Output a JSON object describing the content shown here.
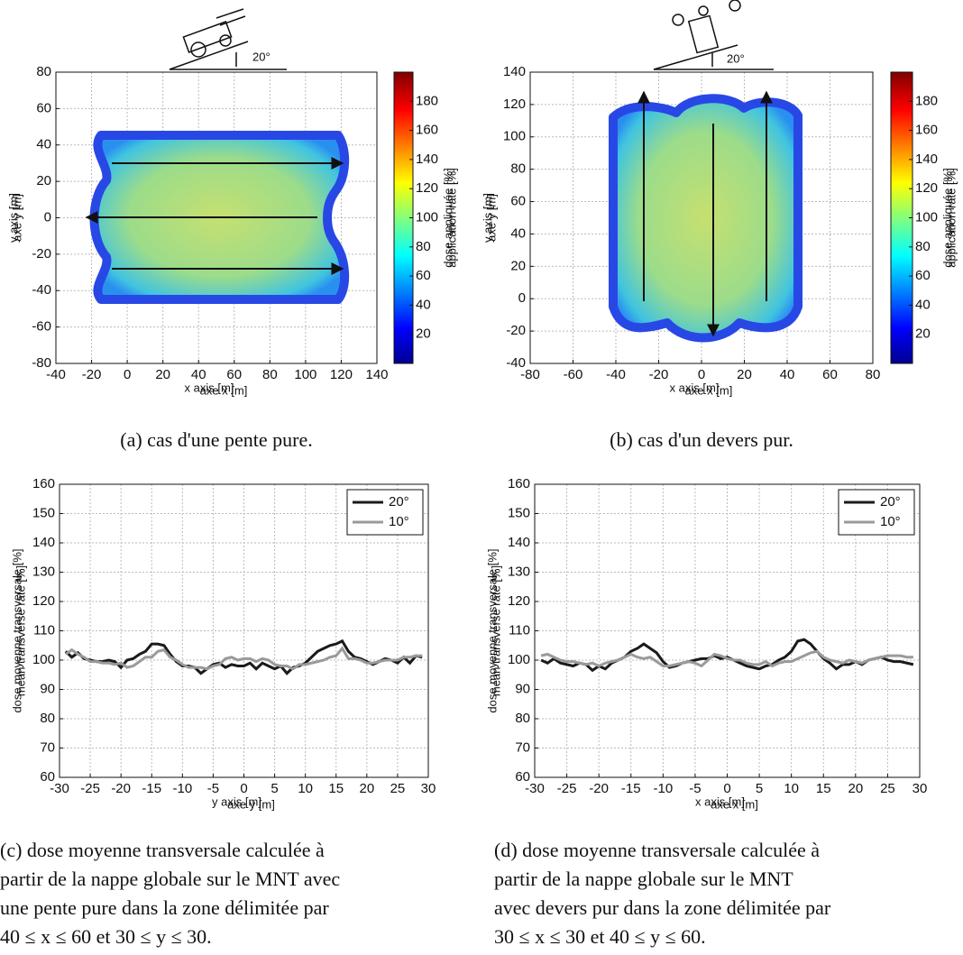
{
  "chart_data": [
    {
      "type": "heatmap",
      "annotation": "20°",
      "xlabel": "x axis [m]",
      "xlabel_alt": "axe x [m]",
      "ylabel": "y axis [m]",
      "ylabel_alt": "axe y [m]",
      "xlim": [
        -40,
        140
      ],
      "xticks": [
        -40,
        -20,
        0,
        20,
        40,
        60,
        80,
        100,
        120,
        140
      ],
      "ylim": [
        -80,
        80
      ],
      "yticks": [
        -80,
        -60,
        -40,
        -20,
        0,
        20,
        40,
        60,
        80
      ],
      "grid": true,
      "colorbar": {
        "clim": [
          0,
          200
        ],
        "ticks": [
          20,
          40,
          60,
          80,
          100,
          120,
          140,
          160,
          180
        ],
        "label": "dose appliquée [%]",
        "label_alt": "application rate [%]"
      },
      "caption": [
        "(a) cas d'une pente pure."
      ]
    },
    {
      "type": "heatmap",
      "annotation": "20°",
      "xlabel": "x axis [m]",
      "xlabel_alt": "axe x [m]",
      "ylabel": "y axis [m]",
      "ylabel_alt": "axe y [m]",
      "xlim": [
        -80,
        80
      ],
      "xticks": [
        -80,
        -60,
        -40,
        -20,
        0,
        20,
        40,
        60,
        80
      ],
      "ylim": [
        -40,
        140
      ],
      "yticks": [
        -40,
        -20,
        0,
        20,
        40,
        60,
        80,
        100,
        120,
        140
      ],
      "grid": true,
      "colorbar": {
        "clim": [
          0,
          200
        ],
        "ticks": [
          20,
          40,
          60,
          80,
          100,
          120,
          140,
          160,
          180
        ],
        "label": "dose appliquée [%]",
        "label_alt": "application rate [%]"
      },
      "caption": [
        "(b) cas d'un devers pur."
      ]
    },
    {
      "type": "line",
      "xlabel": "y axis [m]",
      "xlabel_alt": "axe y [m]",
      "ylabel": "dose moyenne transversale [%]",
      "ylabel_alt": "mean transverse rate [%]",
      "xlim": [
        -30,
        30
      ],
      "xticks": [
        -30,
        -25,
        -20,
        -15,
        -10,
        -5,
        0,
        5,
        10,
        15,
        20,
        25,
        30
      ],
      "ylim": [
        60,
        160
      ],
      "yticks": [
        60,
        70,
        80,
        90,
        100,
        110,
        120,
        130,
        140,
        150,
        160
      ],
      "grid": true,
      "legend": "upper right",
      "x": [
        -29,
        -28,
        -27,
        -26,
        -25,
        -24,
        -23,
        -22,
        -21,
        -20,
        -19,
        -18,
        -17,
        -16,
        -15,
        -14,
        -13,
        -12,
        -11,
        -10,
        -9,
        -8,
        -7,
        -6,
        -5,
        -4,
        -3,
        -2,
        -1,
        0,
        1,
        2,
        3,
        4,
        5,
        6,
        7,
        8,
        9,
        10,
        11,
        12,
        13,
        14,
        15,
        16,
        17,
        18,
        19,
        20,
        21,
        22,
        23,
        24,
        25,
        26,
        27,
        28,
        29
      ],
      "series": [
        {
          "name": "20°",
          "color": "#1a1a1a",
          "values": [
            103,
            101,
            102.5,
            100.5,
            100,
            99.5,
            99.5,
            100,
            99.5,
            97.5,
            100,
            100.5,
            102,
            103,
            105.5,
            105.5,
            105,
            102,
            99.5,
            98,
            98,
            97.5,
            95.5,
            97,
            98.5,
            99,
            97.5,
            98.5,
            98,
            98,
            99,
            97,
            99,
            98,
            97,
            98,
            95.5,
            97.5,
            98,
            99,
            101,
            103,
            104,
            105,
            105.5,
            106.5,
            103,
            101,
            100.5,
            99.5,
            98.5,
            99.5,
            100.5,
            100,
            99,
            101,
            99,
            101.5,
            101
          ]
        },
        {
          "name": "10°",
          "color": "#9a9a9a",
          "values": [
            102,
            103.5,
            102,
            101,
            99.5,
            99.5,
            99,
            99,
            98.5,
            99,
            97.5,
            98,
            99.5,
            101,
            101,
            103,
            103.5,
            101,
            100,
            98.5,
            97.5,
            97.5,
            97.5,
            97,
            98,
            98.5,
            100.5,
            101,
            100,
            100.5,
            100.5,
            99.5,
            100.5,
            100,
            98.5,
            98,
            98,
            97,
            98.5,
            98.5,
            99,
            99.5,
            100,
            101,
            101.5,
            104,
            100.5,
            100.5,
            100,
            99,
            99,
            99.5,
            100,
            100,
            100,
            101,
            101,
            101.5,
            101.5
          ]
        }
      ],
      "caption": [
        "(c) dose moyenne transversale calculée à",
        "partir de la nappe globale sur le MNT avec",
        "une pente pure dans la zone délimitée par",
        "40 ≤ x ≤ 60 et   30 ≤ y ≤ 30."
      ]
    },
    {
      "type": "line",
      "xlabel": "x axis [m]",
      "xlabel_alt": "axe x [m]",
      "ylabel": "dose moyenne transversale [%]",
      "ylabel_alt": "mean transverse rate [%]",
      "xlim": [
        -30,
        30
      ],
      "xticks": [
        -30,
        -25,
        -20,
        -15,
        -10,
        -5,
        0,
        5,
        10,
        15,
        20,
        25,
        30
      ],
      "ylim": [
        60,
        160
      ],
      "yticks": [
        60,
        70,
        80,
        90,
        100,
        110,
        120,
        130,
        140,
        150,
        160
      ],
      "grid": true,
      "legend": "upper right",
      "x": [
        -29,
        -28,
        -27,
        -26,
        -25,
        -24,
        -23,
        -22,
        -21,
        -20,
        -19,
        -18,
        -17,
        -16,
        -15,
        -14,
        -13,
        -12,
        -11,
        -10,
        -9,
        -8,
        -7,
        -6,
        -5,
        -4,
        -3,
        -2,
        -1,
        0,
        1,
        2,
        3,
        4,
        5,
        6,
        7,
        8,
        9,
        10,
        11,
        12,
        13,
        14,
        15,
        16,
        17,
        18,
        19,
        20,
        21,
        22,
        23,
        24,
        25,
        26,
        27,
        28,
        29
      ],
      "series": [
        {
          "name": "20°",
          "color": "#1a1a1a",
          "values": [
            100,
            99,
            100.5,
            99,
            98.5,
            98,
            99,
            98.5,
            96.5,
            98,
            97,
            99,
            100,
            101,
            103,
            104,
            105.5,
            104,
            102.5,
            99.5,
            97.5,
            98,
            99,
            99.5,
            100,
            100.5,
            100.5,
            101.5,
            100.5,
            101,
            100,
            99,
            98,
            97.5,
            97,
            98,
            98.5,
            100,
            101,
            103,
            106.5,
            107,
            105.5,
            103,
            100.5,
            99,
            97,
            98.5,
            98.5,
            99.5,
            98.5,
            100,
            100.5,
            101,
            100,
            99.5,
            99.5,
            99,
            98.5
          ]
        },
        {
          "name": "10°",
          "color": "#9a9a9a",
          "values": [
            101.5,
            102,
            101,
            100,
            99.5,
            99.5,
            99,
            98.5,
            99,
            98,
            99,
            99.5,
            100,
            101,
            102,
            101,
            100.5,
            101,
            99.5,
            98,
            98,
            98.5,
            99,
            99.5,
            99,
            98,
            100,
            102,
            101.5,
            100.5,
            100,
            100,
            99,
            98.5,
            98.5,
            99.5,
            98,
            99,
            99.5,
            99.5,
            100.5,
            101.5,
            102.5,
            103,
            101,
            100,
            99.5,
            99,
            100,
            99.5,
            99,
            100,
            100.5,
            101,
            101.5,
            101.5,
            101.5,
            101,
            101
          ]
        }
      ],
      "caption": [
        "(d) dose moyenne transversale calculée à",
        "partir de la nappe globale sur le MNT",
        "avec devers pur dans la zone délimitée par",
        "30 ≤ x ≤ 30 et 40 ≤ y ≤ 60."
      ]
    }
  ]
}
